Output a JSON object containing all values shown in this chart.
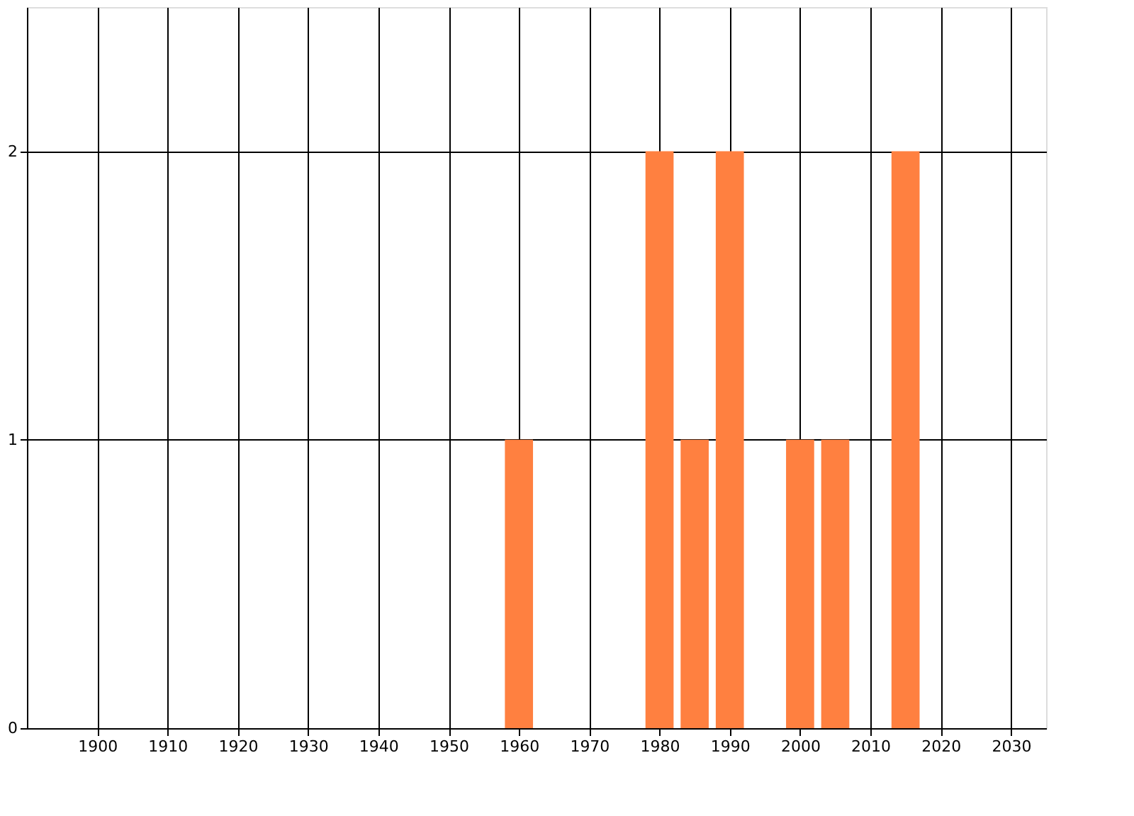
{
  "chart_data": {
    "type": "bar",
    "x": [
      1960,
      1980,
      1985,
      1990,
      2000,
      2005,
      2015
    ],
    "values": [
      1,
      2,
      1,
      2,
      1,
      1,
      2
    ],
    "color": "#ff8040",
    "xlim": [
      1890,
      2035
    ],
    "xticks": [
      1900,
      1910,
      1920,
      1930,
      1940,
      1950,
      1960,
      1970,
      1980,
      1990,
      2000,
      2010,
      2020,
      2030
    ],
    "ylim": [
      0,
      2.5
    ],
    "yticks": [
      0,
      1,
      2
    ],
    "grid": true
  }
}
